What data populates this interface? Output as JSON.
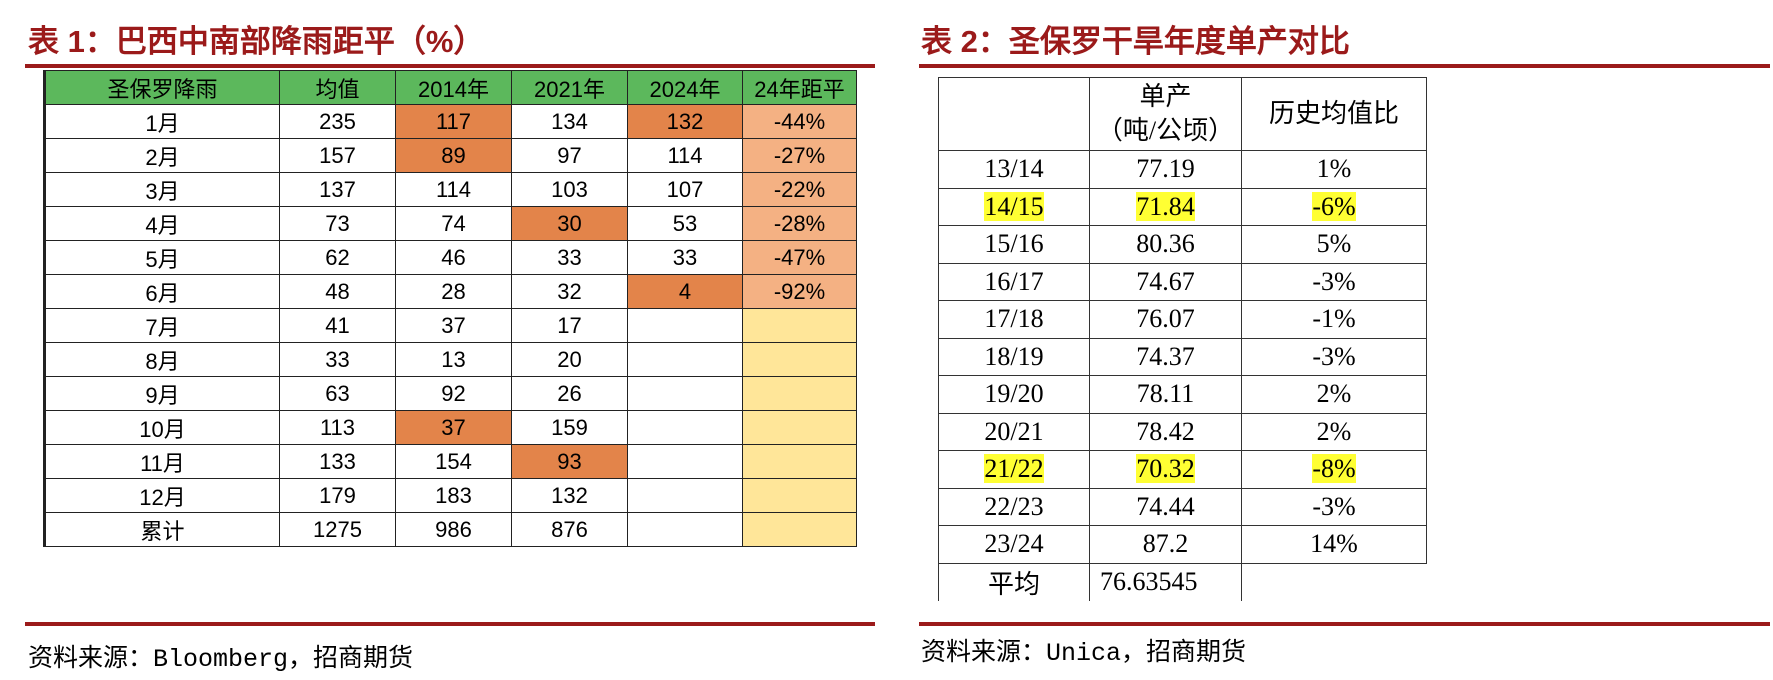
{
  "left": {
    "title": "表 1：巴西中南部降雨距平（%）",
    "header": [
      "圣保罗降雨",
      "均值",
      "2014年",
      "2021年",
      "2024年",
      "24年距平"
    ],
    "rows": [
      [
        "1月",
        235,
        117,
        134,
        132,
        "-44%"
      ],
      [
        "2月",
        157,
        89,
        97,
        114,
        "-27%"
      ],
      [
        "3月",
        137,
        114,
        103,
        107,
        "-22%"
      ],
      [
        "4月",
        73,
        74,
        30,
        53,
        "-28%"
      ],
      [
        "5月",
        62,
        46,
        33,
        33,
        "-47%"
      ],
      [
        "6月",
        48,
        28,
        32,
        4,
        "-92%"
      ],
      [
        "7月",
        41,
        37,
        17,
        null,
        null
      ],
      [
        "8月",
        33,
        13,
        20,
        null,
        null
      ],
      [
        "9月",
        63,
        92,
        26,
        null,
        null
      ],
      [
        "10月",
        113,
        37,
        159,
        null,
        null
      ],
      [
        "11月",
        133,
        154,
        93,
        null,
        null
      ],
      [
        "12月",
        179,
        183,
        132,
        null,
        null
      ],
      [
        "累计",
        1275,
        986,
        876,
        null,
        null
      ]
    ],
    "source": "资料来源：Bloomberg，招商期货"
  },
  "right": {
    "title": "表 2：圣保罗干旱年度单产对比",
    "header": [
      null,
      "单产\n（吨/公顷）",
      "历史均值比"
    ],
    "rows": [
      [
        "13/14",
        77.19,
        "1%"
      ],
      [
        "14/15",
        71.84,
        "-6%"
      ],
      [
        "15/16",
        80.36,
        "5%"
      ],
      [
        "16/17",
        74.67,
        "-3%"
      ],
      [
        "17/18",
        76.07,
        "-1%"
      ],
      [
        "18/19",
        74.37,
        "-3%"
      ],
      [
        "19/20",
        78.11,
        "2%"
      ],
      [
        "20/21",
        78.42,
        "2%"
      ],
      [
        "21/22",
        70.32,
        "-8%"
      ],
      [
        "22/23",
        74.44,
        "-3%"
      ],
      [
        "23/24",
        87.2,
        "14%"
      ],
      [
        "平均",
        76.63545,
        null
      ]
    ],
    "source": "资料来源：Unica，招商期货"
  }
}
